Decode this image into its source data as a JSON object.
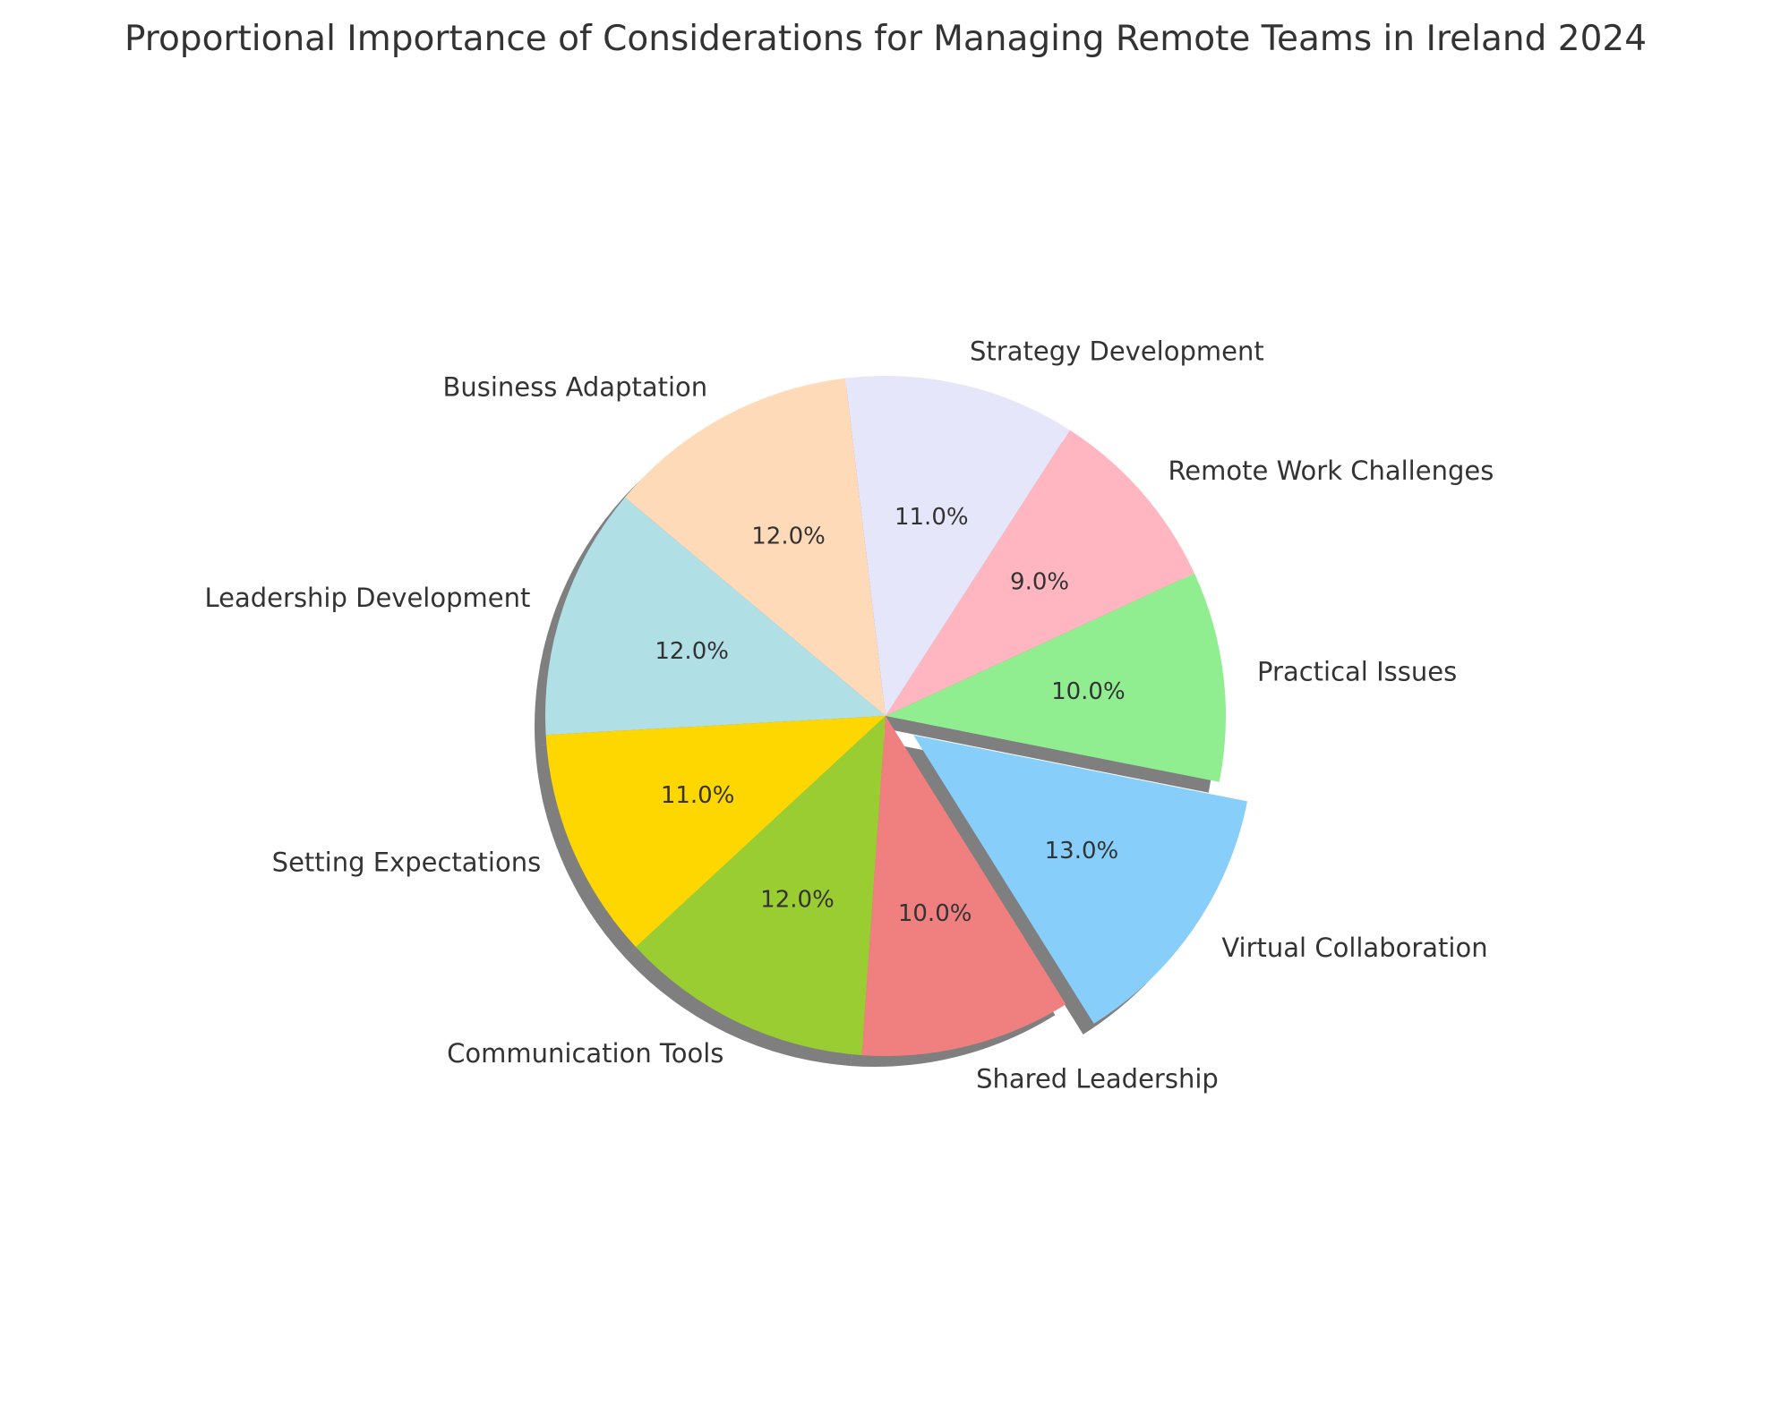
{
  "chart_data": {
    "type": "pie",
    "title": "Proportional Importance of Considerations for Managing Remote Teams in Ireland 2024",
    "start_angle_deg": 140,
    "direction": "counterclockwise",
    "shadow": true,
    "slices": [
      {
        "label": "Leadership Development",
        "value": 12.0,
        "pct_text": "12.0%",
        "color": "#B0DFE5",
        "explode": 0
      },
      {
        "label": "Setting Expectations",
        "value": 11.0,
        "pct_text": "11.0%",
        "color": "#FFD700",
        "explode": 0
      },
      {
        "label": "Communication Tools",
        "value": 12.0,
        "pct_text": "12.0%",
        "color": "#9ACD32",
        "explode": 0
      },
      {
        "label": "Shared Leadership",
        "value": 10.0,
        "pct_text": "10.0%",
        "color": "#F08080",
        "explode": 0
      },
      {
        "label": "Virtual Collaboration",
        "value": 13.0,
        "pct_text": "13.0%",
        "color": "#87CEFA",
        "explode": 0.1
      },
      {
        "label": "Practical Issues",
        "value": 10.0,
        "pct_text": "10.0%",
        "color": "#90EE90",
        "explode": 0
      },
      {
        "label": "Remote Work Challenges",
        "value": 9.0,
        "pct_text": "9.0%",
        "color": "#FFB6C1",
        "explode": 0
      },
      {
        "label": "Strategy Development",
        "value": 11.0,
        "pct_text": "11.0%",
        "color": "#E6E6FA",
        "explode": 0
      },
      {
        "label": "Business Adaptation",
        "value": 12.0,
        "pct_text": "12.0%",
        "color": "#FFDAB9",
        "explode": 0
      }
    ]
  }
}
